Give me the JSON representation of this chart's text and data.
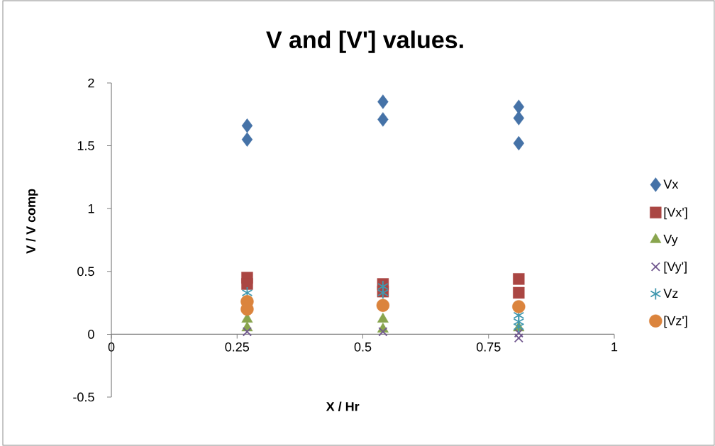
{
  "chart_data": {
    "type": "scatter",
    "title": "V and [V'] values.",
    "xlabel": "X / Hr",
    "ylabel": "V / V comp",
    "xlim": [
      0,
      1
    ],
    "xticks": [
      0,
      0.25,
      0.5,
      0.75,
      1
    ],
    "ylim": [
      -0.5,
      2
    ],
    "yticks": [
      -0.5,
      0,
      0.5,
      1,
      1.5,
      2
    ],
    "legend": "right",
    "grid": false,
    "series": [
      {
        "name": "Vx",
        "color": "#4572a7",
        "marker": "diamond",
        "x": [
          0.27,
          0.27,
          0.54,
          0.54,
          0.81,
          0.81,
          0.81
        ],
        "values": [
          1.66,
          1.55,
          1.85,
          1.71,
          1.81,
          1.72,
          1.52
        ]
      },
      {
        "name": "[Vx']",
        "color": "#aa4643",
        "marker": "square",
        "x": [
          0.27,
          0.27,
          0.54,
          0.54,
          0.81,
          0.81
        ],
        "values": [
          0.45,
          0.4,
          0.4,
          0.34,
          0.44,
          0.33
        ]
      },
      {
        "name": "Vy",
        "color": "#89a54e",
        "marker": "triangle",
        "x": [
          0.27,
          0.27,
          0.54,
          0.54,
          0.81
        ],
        "values": [
          0.12,
          0.05,
          0.12,
          0.04,
          0.05
        ]
      },
      {
        "name": "[Vy']",
        "color": "#71588f",
        "marker": "cross",
        "x": [
          0.27,
          0.54,
          0.81,
          0.81
        ],
        "values": [
          0.02,
          0.02,
          0.01,
          -0.03
        ]
      },
      {
        "name": "Vz",
        "color": "#4198af",
        "x": [
          0.27,
          0.54,
          0.54,
          0.81,
          0.81,
          0.81
        ],
        "values": [
          0.33,
          0.38,
          0.33,
          0.15,
          0.1,
          0.06
        ]
      },
      {
        "name": "[Vz']",
        "color": "#db843d",
        "marker": "circle",
        "x": [
          0.27,
          0.27,
          0.54,
          0.81
        ],
        "values": [
          0.26,
          0.2,
          0.23,
          0.22
        ]
      }
    ]
  }
}
